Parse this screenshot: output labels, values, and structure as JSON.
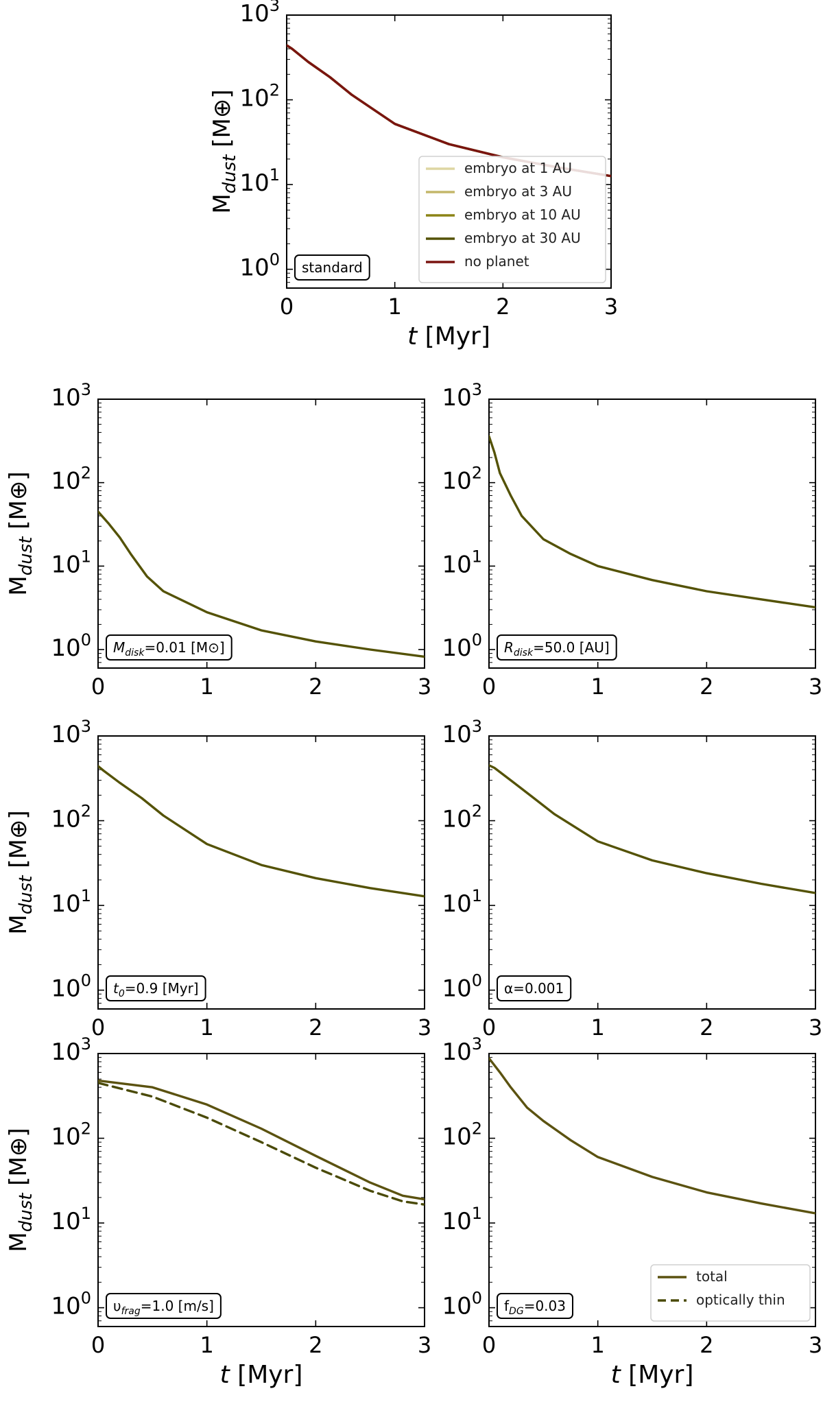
{
  "colors": {
    "embryo_1au": "#ded6a3",
    "embryo_3au": "#c4b76a",
    "embryo_10au": "#8c8416",
    "embryo_30au": "#545206",
    "no_planet": "#7a1410",
    "total": "#5b5210",
    "optically_thin": "#4a4a08"
  },
  "chart_data": [
    {
      "type": "line",
      "id": "standard",
      "annotation": "standard",
      "xlabel": "t [Myr]",
      "ylabel": "M_dust [M⊕]",
      "xlim": [
        0,
        3
      ],
      "ylim": [
        0.6,
        1000
      ],
      "yscale": "log",
      "xticks": [
        "0",
        "1",
        "2",
        "3"
      ],
      "legend": "lower-right",
      "legend_entries": [
        "embryo at 1 AU",
        "embryo at 3 AU",
        "embryo at 10 AU",
        "embryo at 30 AU",
        "no planet"
      ],
      "series": [
        {
          "name": "embryo at 1 AU",
          "x": [
            0,
            0.05,
            0.2,
            0.4,
            0.6,
            1.0,
            1.5,
            2.0,
            2.5,
            3.0
          ],
          "y": [
            440,
            400,
            280,
            185,
            115,
            52,
            30,
            21,
            16,
            12.6
          ]
        },
        {
          "name": "embryo at 3 AU",
          "x": [
            0,
            0.05,
            0.2,
            0.4,
            0.6,
            1.0,
            1.5,
            2.0,
            2.5,
            3.0
          ],
          "y": [
            440,
            400,
            280,
            185,
            115,
            52,
            30,
            21,
            16,
            12.6
          ]
        },
        {
          "name": "embryo at 10 AU",
          "x": [
            0,
            0.05,
            0.2,
            0.4,
            0.6,
            1.0,
            1.5,
            2.0,
            2.5,
            3.0
          ],
          "y": [
            440,
            400,
            280,
            185,
            115,
            52,
            30,
            21,
            16,
            12.6
          ]
        },
        {
          "name": "embryo at 30 AU",
          "x": [
            0,
            0.05,
            0.2,
            0.4,
            0.6,
            1.0,
            1.5,
            2.0,
            2.5,
            3.0
          ],
          "y": [
            440,
            400,
            280,
            185,
            115,
            52,
            30,
            21,
            16,
            12.6
          ]
        },
        {
          "name": "no planet",
          "x": [
            0,
            0.05,
            0.2,
            0.4,
            0.6,
            1.0,
            1.5,
            2.0,
            2.5,
            3.0
          ],
          "y": [
            440,
            400,
            280,
            185,
            115,
            52,
            30,
            21,
            16,
            12.6
          ]
        }
      ]
    },
    {
      "type": "line",
      "id": "mdisk",
      "annotation": "M_disk=0.01 [M⊙]",
      "xlabel": "",
      "ylabel": "M_dust [M⊕]",
      "xlim": [
        0,
        3
      ],
      "ylim": [
        0.6,
        1000
      ],
      "yscale": "log",
      "xticks": [
        "0",
        "1",
        "2",
        "3"
      ],
      "series": [
        {
          "x": [
            0,
            0.1,
            0.2,
            0.3,
            0.45,
            0.6,
            1.0,
            1.5,
            2.0,
            2.5,
            3.0
          ],
          "y": [
            45,
            32,
            22,
            14,
            7.5,
            5,
            2.8,
            1.7,
            1.25,
            1.0,
            0.82
          ]
        }
      ]
    },
    {
      "type": "line",
      "id": "rdisk",
      "annotation": "R_disk=50.0 [AU]",
      "xlabel": "",
      "ylabel": "",
      "xlim": [
        0,
        3
      ],
      "ylim": [
        0.6,
        1000
      ],
      "yscale": "log",
      "xticks": [
        "0",
        "1",
        "2",
        "3"
      ],
      "series": [
        {
          "x": [
            0,
            0.05,
            0.1,
            0.2,
            0.3,
            0.5,
            0.75,
            1.0,
            1.5,
            2.0,
            2.5,
            3.0
          ],
          "y": [
            360,
            230,
            130,
            70,
            40,
            21,
            14,
            10,
            6.8,
            5,
            4,
            3.2
          ]
        }
      ]
    },
    {
      "type": "line",
      "id": "t0",
      "annotation": "t_0=0.9 [Myr]",
      "xlabel": "",
      "ylabel": "M_dust [M⊕]",
      "xlim": [
        0,
        3
      ],
      "ylim": [
        0.6,
        1000
      ],
      "yscale": "log",
      "xticks": [
        "0",
        "1",
        "2",
        "3"
      ],
      "series": [
        {
          "x": [
            0,
            0.05,
            0.2,
            0.4,
            0.6,
            1.0,
            1.5,
            2.0,
            2.5,
            3.0
          ],
          "y": [
            440,
            390,
            280,
            185,
            115,
            53,
            30,
            21,
            16,
            12.8
          ]
        }
      ]
    },
    {
      "type": "line",
      "id": "alpha",
      "annotation": "α=0.001",
      "xlabel": "",
      "ylabel": "",
      "xlim": [
        0,
        3
      ],
      "ylim": [
        0.6,
        1000
      ],
      "yscale": "log",
      "xticks": [
        "0",
        "1",
        "2",
        "3"
      ],
      "series": [
        {
          "x": [
            0,
            0.05,
            0.2,
            0.4,
            0.6,
            1.0,
            1.5,
            2.0,
            2.5,
            3.0
          ],
          "y": [
            450,
            420,
            300,
            190,
            120,
            57,
            34,
            24,
            18,
            14
          ]
        }
      ]
    },
    {
      "type": "line",
      "id": "vfrag",
      "annotation": "υ_frag=1.0 [m/s]",
      "xlabel": "t [Myr]",
      "ylabel": "M_dust [M⊕]",
      "xlim": [
        0,
        3
      ],
      "ylim": [
        0.6,
        1000
      ],
      "yscale": "log",
      "xticks": [
        "0",
        "1",
        "2",
        "3"
      ],
      "series": [
        {
          "name": "total",
          "x": [
            0,
            0.5,
            1.0,
            1.5,
            2.0,
            2.5,
            2.8,
            3.0
          ],
          "y": [
            480,
            400,
            250,
            130,
            62,
            30,
            21,
            19
          ]
        },
        {
          "name": "optically thin",
          "style": "dashed",
          "x": [
            0,
            0.5,
            1.0,
            1.5,
            2.0,
            2.5,
            2.8,
            3.0
          ],
          "y": [
            450,
            310,
            175,
            90,
            45,
            24,
            18,
            16.5
          ]
        }
      ]
    },
    {
      "type": "line",
      "id": "fdg",
      "annotation": "f_DG=0.03",
      "xlabel": "t [Myr]",
      "ylabel": "",
      "xlim": [
        0,
        3
      ],
      "ylim": [
        0.6,
        1000
      ],
      "yscale": "log",
      "xticks": [
        "0",
        "1",
        "2",
        "3"
      ],
      "legend": "lower-right",
      "legend_entries": [
        "total",
        "optically thin"
      ],
      "series": [
        {
          "name": "total",
          "x": [
            0,
            0.1,
            0.2,
            0.35,
            0.5,
            0.75,
            1.0,
            1.5,
            2.0,
            2.5,
            3.0
          ],
          "y": [
            880,
            600,
            400,
            230,
            160,
            95,
            60,
            35,
            23,
            17,
            13
          ]
        }
      ]
    }
  ]
}
